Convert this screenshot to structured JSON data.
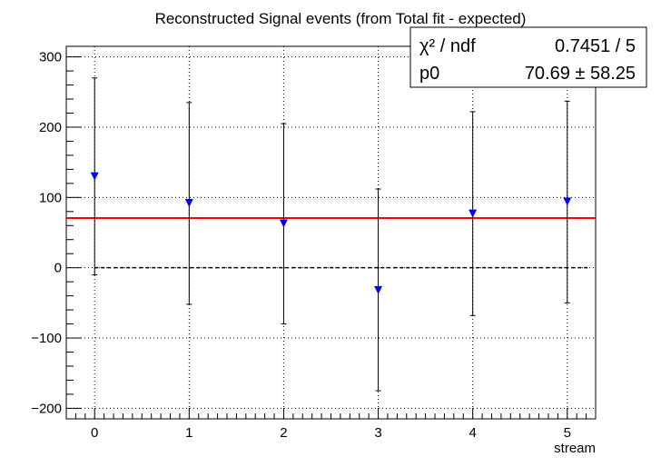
{
  "chart_data": {
    "type": "scatter",
    "title": "Reconstructed Signal events (from Total fit - expected)",
    "xlabel": "stream",
    "ylabel": "",
    "xlim": [
      -0.3,
      5.3
    ],
    "ylim": [
      -215,
      315
    ],
    "xticks": [
      "0",
      "1",
      "2",
      "3",
      "4",
      "5"
    ],
    "yticks": [
      "−200",
      "−100",
      "0",
      "100",
      "200",
      "300"
    ],
    "grid": true,
    "series": [
      {
        "x": [
          0,
          1,
          2,
          3,
          4,
          5
        ],
        "y": [
          130,
          92,
          63,
          -32,
          77,
          94
        ],
        "err_low": [
          -10,
          -52,
          -80,
          -175,
          -68,
          -50
        ],
        "err_high": [
          270,
          235,
          205,
          112,
          222,
          237
        ],
        "marker": "triangle-down",
        "color": "#0000ff"
      }
    ],
    "reference_line": {
      "y": 0,
      "style": "dashed",
      "color": "#000000"
    },
    "fit_line": {
      "y": 70.69,
      "color": "#ff0000"
    },
    "stats_box": {
      "row1_label": "χ² / ndf",
      "row1_value": "0.7451 / 5",
      "row2_label": "p0",
      "row2_value": "70.69 ± 58.25",
      "position": "top-right"
    }
  }
}
